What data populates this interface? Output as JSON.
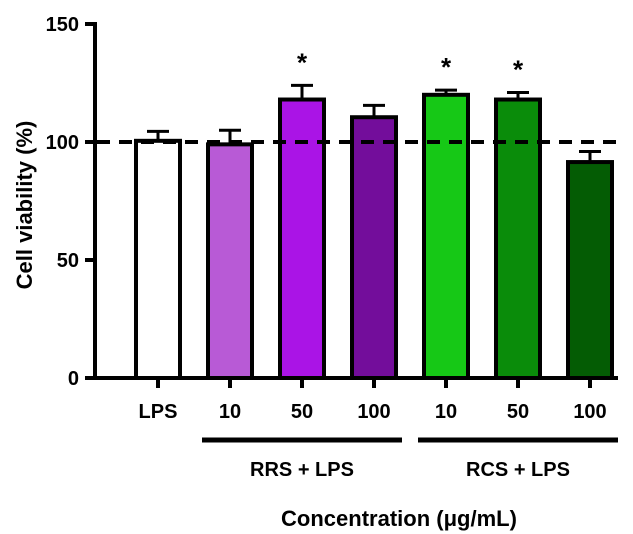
{
  "chart_data": {
    "type": "bar",
    "categories": [
      "LPS",
      "10",
      "50",
      "100",
      "10",
      "50",
      "100"
    ],
    "values": [
      100.5,
      99,
      118,
      110.5,
      120,
      118,
      91.5
    ],
    "errors": [
      4,
      6,
      6,
      5,
      2,
      3,
      4.5
    ],
    "colors": [
      "#ffffff",
      "#b85ad6",
      "#aa14e6",
      "#730d9b",
      "#16c816",
      "#0a8c0a",
      "#045c04"
    ],
    "significance": [
      "",
      "",
      "*",
      "",
      "*",
      "*",
      ""
    ],
    "groups": [
      {
        "label": "RRS + LPS",
        "from": 1,
        "to": 3
      },
      {
        "label": "RCS + LPS",
        "from": 4,
        "to": 6
      }
    ],
    "reference_line": 100,
    "ylabel": "Cell viability (%)",
    "xlabel": "Concentration (μg/mL)",
    "ylim": [
      0,
      150
    ],
    "yticks": [
      0,
      50,
      100,
      150
    ],
    "grid": false,
    "legend": "none"
  }
}
